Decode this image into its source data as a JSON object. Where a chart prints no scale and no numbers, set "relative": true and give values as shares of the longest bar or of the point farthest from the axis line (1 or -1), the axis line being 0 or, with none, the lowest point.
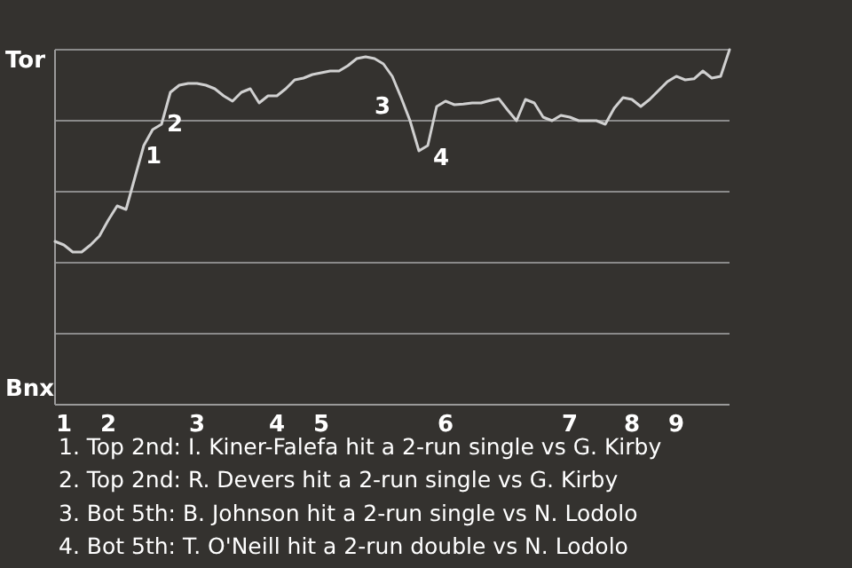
{
  "chart_data": {
    "type": "line",
    "relative": true,
    "tick_labels": "x",
    "grid": "y",
    "marker": "none",
    "line_style": "solid",
    "categories": [
      null,
      "1",
      null,
      null,
      null,
      null,
      "2",
      null,
      null,
      null,
      null,
      null,
      null,
      null,
      null,
      null,
      "3",
      null,
      null,
      null,
      null,
      null,
      null,
      null,
      null,
      "4",
      null,
      null,
      null,
      null,
      "5",
      null,
      null,
      null,
      null,
      null,
      null,
      null,
      null,
      null,
      null,
      null,
      null,
      null,
      "6",
      null,
      null,
      null,
      null,
      null,
      null,
      null,
      null,
      null,
      null,
      null,
      null,
      null,
      "7",
      null,
      null,
      null,
      null,
      null,
      null,
      "8",
      null,
      null,
      null,
      null,
      "9",
      null,
      null,
      null,
      null,
      null,
      null
    ],
    "series": [
      {
        "color": "#d0d0d0",
        "values": [
          0.46,
          0.45,
          0.43,
          0.43,
          0.45,
          0.475,
          0.52,
          0.56,
          0.55,
          0.64,
          0.73,
          0.775,
          0.79,
          0.88,
          0.9,
          0.905,
          0.905,
          0.9,
          0.89,
          0.87,
          0.855,
          0.88,
          0.89,
          0.85,
          0.87,
          0.87,
          0.89,
          0.915,
          0.92,
          0.93,
          0.935,
          0.94,
          0.94,
          0.955,
          0.975,
          0.98,
          0.975,
          0.96,
          0.925,
          0.865,
          0.8,
          0.715,
          0.73,
          0.84,
          0.855,
          0.845,
          0.847,
          0.85,
          0.85,
          0.857,
          0.862,
          0.83,
          0.8,
          0.86,
          0.85,
          0.81,
          0.8,
          0.815,
          0.81,
          0.8,
          0.8,
          0.8,
          0.79,
          0.835,
          0.865,
          0.86,
          0.84,
          0.86,
          0.885,
          0.91,
          0.925,
          0.915,
          0.918,
          0.94,
          0.92,
          0.925,
          1.0
        ]
      }
    ],
    "annotations": [
      "Tor",
      "Bnx",
      "1",
      "2",
      "3",
      "4",
      "1. Top 2nd: I. Kiner-Falefa hit a 2-run single vs G. Kirby",
      "2. Top 2nd: R. Devers hit a 2-run single vs G. Kirby",
      "3. Bot 5th: B. Johnson hit a 2-run single vs N. Lodolo",
      "4. Bot 5th: T. O'Neill hit a 2-run double vs N. Lodolo"
    ]
  }
}
